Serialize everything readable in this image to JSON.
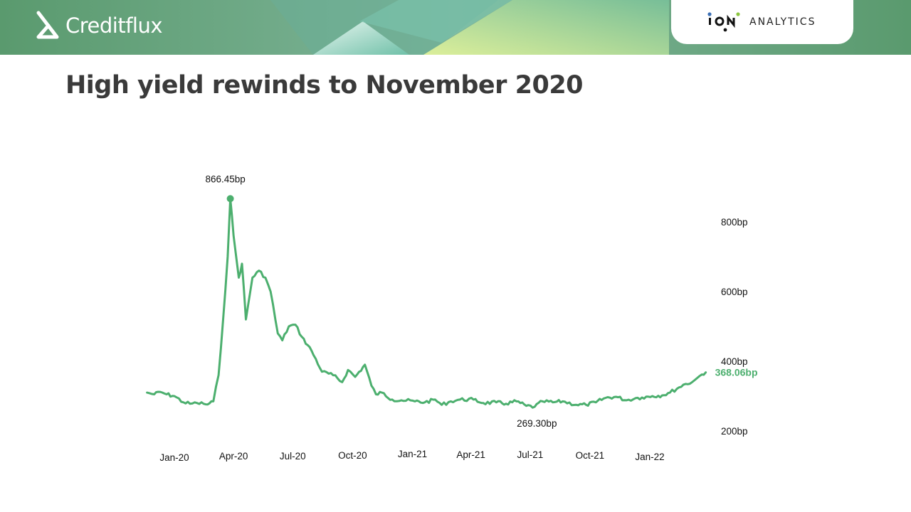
{
  "header": {
    "brand": "Creditflux",
    "partner": "ANALYTICS",
    "colors": {
      "header": "#5a9a6e",
      "accent": "#d8f08a"
    }
  },
  "slide": {
    "title": "High yield rewinds to November 2020"
  },
  "chart_data": {
    "type": "line",
    "title": "",
    "xlabel": "",
    "ylabel": "",
    "y_unit": "bp",
    "ylim": [
      200,
      880
    ],
    "x_ticks": [
      "Jan-20",
      "Apr-20",
      "Jul-20",
      "Oct-20",
      "Jan-21",
      "Apr-21",
      "Jul-21",
      "Oct-21",
      "Jan-22"
    ],
    "y_ticks": [
      "800bp",
      "600bp",
      "400bp",
      "200bp"
    ],
    "y_tick_values": [
      800,
      600,
      400,
      200
    ],
    "grid": false,
    "line_color": "#4caf6e",
    "series": [
      {
        "name": "",
        "x": [
          "2019-11-20",
          "2019-12-01",
          "2019-12-10",
          "2019-12-20",
          "2020-01-01",
          "2020-01-15",
          "2020-01-25",
          "2020-02-05",
          "2020-02-15",
          "2020-02-21",
          "2020-03-01",
          "2020-03-09",
          "2020-03-16",
          "2020-03-23",
          "2020-03-27",
          "2020-04-01",
          "2020-04-09",
          "2020-04-14",
          "2020-04-20",
          "2020-04-30",
          "2020-05-10",
          "2020-05-20",
          "2020-05-28",
          "2020-06-08",
          "2020-06-15",
          "2020-06-25",
          "2020-07-05",
          "2020-07-15",
          "2020-07-30",
          "2020-08-15",
          "2020-09-01",
          "2020-09-15",
          "2020-09-24",
          "2020-10-05",
          "2020-10-20",
          "2020-10-30",
          "2020-11-06",
          "2020-11-15",
          "2020-12-01",
          "2020-12-15",
          "2021-01-05",
          "2021-01-20",
          "2021-02-05",
          "2021-02-15",
          "2021-03-01",
          "2021-03-15",
          "2021-04-05",
          "2021-04-20",
          "2021-05-10",
          "2021-05-25",
          "2021-06-10",
          "2021-06-25",
          "2021-07-08",
          "2021-07-20",
          "2021-08-05",
          "2021-08-20",
          "2021-09-10",
          "2021-09-25",
          "2021-10-10",
          "2021-10-25",
          "2021-11-10",
          "2021-11-26",
          "2021-12-10",
          "2021-12-20",
          "2022-01-05",
          "2022-01-20",
          "2022-02-01",
          "2022-02-15",
          "2022-02-25",
          "2022-03-07",
          "2022-03-15",
          "2022-03-22",
          "2022-03-28"
        ],
        "y": [
          310,
          305,
          312,
          305,
          300,
          282,
          278,
          280,
          278,
          276,
          285,
          360,
          520,
          700,
          866.45,
          760,
          640,
          680,
          520,
          640,
          660,
          640,
          600,
          480,
          460,
          500,
          505,
          470,
          430,
          370,
          360,
          340,
          375,
          355,
          390,
          330,
          305,
          310,
          290,
          288,
          285,
          282,
          290,
          275,
          285,
          290,
          290,
          280,
          282,
          278,
          285,
          272,
          269.3,
          285,
          282,
          285,
          275,
          275,
          282,
          295,
          298,
          288,
          294,
          296,
          300,
          302,
          310,
          325,
          335,
          340,
          352,
          362,
          368.06
        ]
      }
    ],
    "annotations": [
      {
        "text": "866.45bp",
        "x": "2020-03-27",
        "y": 866.45,
        "type": "max"
      },
      {
        "text": "269.30bp",
        "x": "2021-07-08",
        "y": 269.3,
        "type": "min"
      },
      {
        "text": "368.06bp",
        "x": "2022-03-28",
        "y": 368.06,
        "type": "last"
      }
    ]
  }
}
